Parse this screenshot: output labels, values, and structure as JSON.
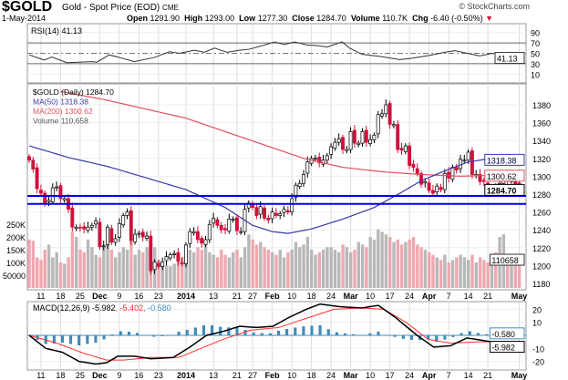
{
  "header": {
    "symbol": "$GOLD",
    "name": "Gold - Spot Price (EOD)",
    "exchange": "CME",
    "copyright": "© StockCharts.com",
    "date": "1-May-2014",
    "open_label": "Open",
    "open": "1291.90",
    "high_label": "High",
    "high": "1293.00",
    "low_label": "Low",
    "low": "1277.30",
    "close_label": "Close",
    "close": "1284.70",
    "volume_label": "Volume",
    "volume": "110.7K",
    "chg_label": "Chg",
    "chg": "-6.40 (-0.50%)"
  },
  "colors": {
    "up": "#ffffff",
    "down": "#d0103a",
    "ma50": "#3a3aa8",
    "ma200": "#e05060",
    "vol_up": "#b8b8b8",
    "vol_down": "#f0a8b0",
    "support": "#0000ee",
    "macd": "#000000",
    "signal": "#ff3030",
    "hist": "#3a8fc0"
  },
  "chart_data": [
    {
      "type": "line",
      "title": "RSI(14) 41.13",
      "legend": "RSI(14) 41.13",
      "ylim": [
        0,
        100
      ],
      "yticks": [
        10,
        30,
        50,
        70,
        90
      ],
      "last_label": "41.13",
      "points": [
        [
          0,
          47
        ],
        [
          6,
          37
        ],
        [
          9,
          43
        ],
        [
          15,
          32
        ],
        [
          20,
          33
        ],
        [
          25,
          34
        ],
        [
          27,
          33
        ],
        [
          32,
          47
        ],
        [
          36,
          42
        ],
        [
          42,
          34
        ],
        [
          50,
          42
        ],
        [
          56,
          53
        ],
        [
          60,
          50
        ],
        [
          66,
          56
        ],
        [
          70,
          52
        ],
        [
          74,
          60
        ],
        [
          79,
          52
        ],
        [
          84,
          56
        ],
        [
          88,
          58
        ],
        [
          94,
          66
        ],
        [
          98,
          72
        ],
        [
          102,
          67
        ],
        [
          106,
          72
        ],
        [
          111,
          66
        ],
        [
          115,
          65
        ],
        [
          119,
          62
        ],
        [
          125,
          72
        ],
        [
          128,
          60
        ],
        [
          133,
          48
        ],
        [
          140,
          44
        ],
        [
          148,
          38
        ],
        [
          152,
          40
        ],
        [
          160,
          46
        ],
        [
          166,
          52
        ],
        [
          170,
          55
        ],
        [
          175,
          50
        ],
        [
          180,
          45
        ],
        [
          185,
          50
        ],
        [
          190,
          46
        ],
        [
          197,
          41
        ]
      ]
    },
    {
      "type": "candlestick",
      "legend": [
        "$GOLD (Daily) 1284.70",
        "MA(50) 1318.38",
        "MA(200) 1300.62",
        "Volume 110,658"
      ],
      "ylim": [
        1170,
        1400
      ],
      "yticks": [
        1180,
        1200,
        1220,
        1240,
        1260,
        1280,
        1300,
        1320,
        1340,
        1360,
        1380
      ],
      "vol_ticks": [
        "250K",
        "200K",
        "150K",
        "100K",
        "50000"
      ],
      "vol_tick_values": [
        250,
        200,
        150,
        100,
        50
      ],
      "price_label": "1284.70",
      "ma50_label": "1318.38",
      "ma200_label": "1300.62",
      "volume_label": "110658",
      "support_levels": [
        1277,
        1268
      ],
      "close": [
        1318,
        1308,
        1286,
        1281,
        1270,
        1273,
        1287,
        1288,
        1275,
        1275,
        1263,
        1243,
        1243,
        1242,
        1241,
        1243,
        1245,
        1250,
        1221,
        1222,
        1243,
        1226,
        1230,
        1247,
        1256,
        1260,
        1228,
        1235,
        1236,
        1232,
        1233,
        1194,
        1204,
        1199,
        1204,
        1210,
        1212,
        1213,
        1205,
        1202,
        1223,
        1238,
        1238,
        1229,
        1225,
        1229,
        1246,
        1253,
        1245,
        1240,
        1240,
        1252,
        1252,
        1239,
        1238,
        1263,
        1270,
        1265,
        1256,
        1266,
        1253,
        1251,
        1260,
        1256,
        1258,
        1263,
        1260,
        1275,
        1290,
        1292,
        1302,
        1316,
        1320,
        1320,
        1315,
        1318,
        1323,
        1333,
        1338,
        1342,
        1330,
        1330,
        1350,
        1337,
        1337,
        1350,
        1338,
        1341,
        1346,
        1369,
        1370,
        1380,
        1358,
        1358,
        1330,
        1329,
        1334,
        1312,
        1310,
        1303,
        1291,
        1294,
        1284,
        1281,
        1289,
        1285,
        1303,
        1298,
        1310,
        1307,
        1319,
        1318,
        1327,
        1302,
        1302,
        1294,
        1294,
        1283,
        1285,
        1283,
        1292,
        1301,
        1296,
        1295,
        1291,
        1284.7
      ],
      "volume_k": [
        190,
        185,
        120,
        110,
        150,
        170,
        120,
        140,
        100,
        95,
        120,
        220,
        200,
        150,
        140,
        190,
        160,
        130,
        120,
        170,
        200,
        150,
        120,
        140,
        160,
        150,
        200,
        130,
        150,
        140,
        160,
        190,
        160,
        110,
        100,
        90,
        85,
        95,
        110,
        120,
        130,
        150,
        140,
        160,
        150,
        170,
        140,
        130,
        120,
        150,
        130,
        120,
        140,
        150,
        120,
        160,
        210,
        190,
        170,
        180,
        160,
        150,
        140,
        130,
        150,
        120,
        140,
        150,
        180,
        160,
        170,
        200,
        150,
        130,
        140,
        150,
        160,
        160,
        150,
        140,
        170,
        160,
        140,
        150,
        180,
        170,
        160,
        200,
        190,
        230,
        220,
        210,
        200,
        180,
        190,
        170,
        180,
        190,
        200,
        170,
        160,
        150,
        140,
        130,
        120,
        110,
        130,
        100,
        110,
        120,
        130,
        120,
        110,
        130,
        100,
        120,
        110,
        100,
        100,
        140,
        200,
        210,
        120,
        110,
        130,
        110
      ],
      "ma50": [
        [
          0,
          1334
        ],
        [
          10,
          1321
        ],
        [
          20,
          1311
        ],
        [
          30,
          1298
        ],
        [
          40,
          1285
        ],
        [
          50,
          1265
        ],
        [
          57,
          1245
        ],
        [
          62,
          1238
        ],
        [
          66,
          1236
        ],
        [
          72,
          1241
        ],
        [
          80,
          1252
        ],
        [
          88,
          1265
        ],
        [
          95,
          1282
        ],
        [
          100,
          1295
        ],
        [
          106,
          1306
        ],
        [
          112,
          1316
        ],
        [
          118,
          1320
        ],
        [
          125,
          1318
        ]
      ],
      "ma200": [
        [
          8,
          1395
        ],
        [
          20,
          1385
        ],
        [
          30,
          1375
        ],
        [
          40,
          1365
        ],
        [
          50,
          1350
        ],
        [
          60,
          1335
        ],
        [
          70,
          1320
        ],
        [
          80,
          1310
        ],
        [
          90,
          1305
        ],
        [
          100,
          1302
        ],
        [
          110,
          1300
        ],
        [
          118,
          1301
        ],
        [
          125,
          1300.6
        ]
      ]
    },
    {
      "type": "line",
      "legend": "MACD(12,26,9)",
      "macd_value": "-5.982",
      "signal_value": "-5.402",
      "hist_value": "-0.580",
      "ylim": [
        -25,
        27
      ],
      "yticks": [
        20,
        10,
        -10,
        -20
      ],
      "macd": [
        [
          0,
          0
        ],
        [
          6,
          -10
        ],
        [
          12,
          -13
        ],
        [
          18,
          -20
        ],
        [
          24,
          -22
        ],
        [
          28,
          -21
        ],
        [
          32,
          -16
        ],
        [
          38,
          -16
        ],
        [
          44,
          -18
        ],
        [
          52,
          -17
        ],
        [
          58,
          -9
        ],
        [
          64,
          0
        ],
        [
          70,
          3
        ],
        [
          76,
          7
        ],
        [
          82,
          6
        ],
        [
          88,
          7
        ],
        [
          94,
          14
        ],
        [
          100,
          20
        ],
        [
          105,
          24
        ],
        [
          112,
          22
        ],
        [
          120,
          21
        ],
        [
          126,
          23
        ],
        [
          132,
          14
        ],
        [
          140,
          0
        ],
        [
          146,
          -9
        ],
        [
          152,
          -8
        ],
        [
          158,
          -2
        ],
        [
          164,
          -4
        ],
        [
          170,
          -6
        ],
        [
          178,
          -6
        ]
      ],
      "signal": [
        [
          0,
          0
        ],
        [
          10,
          -6
        ],
        [
          20,
          -14
        ],
        [
          28,
          -19
        ],
        [
          34,
          -19
        ],
        [
          44,
          -17
        ],
        [
          54,
          -17
        ],
        [
          62,
          -10
        ],
        [
          70,
          -3
        ],
        [
          80,
          4
        ],
        [
          90,
          6
        ],
        [
          100,
          13
        ],
        [
          110,
          20
        ],
        [
          120,
          21
        ],
        [
          128,
          20
        ],
        [
          136,
          10
        ],
        [
          144,
          -3
        ],
        [
          152,
          -6
        ],
        [
          162,
          -5
        ],
        [
          172,
          -5
        ],
        [
          178,
          -5.4
        ]
      ]
    },
    {
      "type": "axis",
      "date_labels": [
        [
          3,
          "11"
        ],
        [
          8,
          "18"
        ],
        [
          13,
          "25"
        ],
        [
          18,
          "Dec"
        ],
        [
          23,
          "9"
        ],
        [
          28,
          "16"
        ],
        [
          33,
          "23"
        ],
        [
          40,
          "2014"
        ],
        [
          47,
          "13"
        ],
        [
          53,
          "21"
        ],
        [
          57,
          "27"
        ],
        [
          62,
          "Feb"
        ],
        [
          67,
          "10"
        ],
        [
          72,
          "18"
        ],
        [
          77,
          "24"
        ],
        [
          82,
          "Mar"
        ],
        [
          87,
          "10"
        ],
        [
          92,
          "17"
        ],
        [
          97,
          "24"
        ],
        [
          102,
          "Apr"
        ],
        [
          107,
          "7"
        ],
        [
          112,
          "14"
        ],
        [
          117,
          "21"
        ],
        [
          125,
          "May"
        ]
      ],
      "bold_labels": [
        "Dec",
        "2014",
        "Feb",
        "Mar",
        "Apr",
        "May"
      ]
    }
  ]
}
